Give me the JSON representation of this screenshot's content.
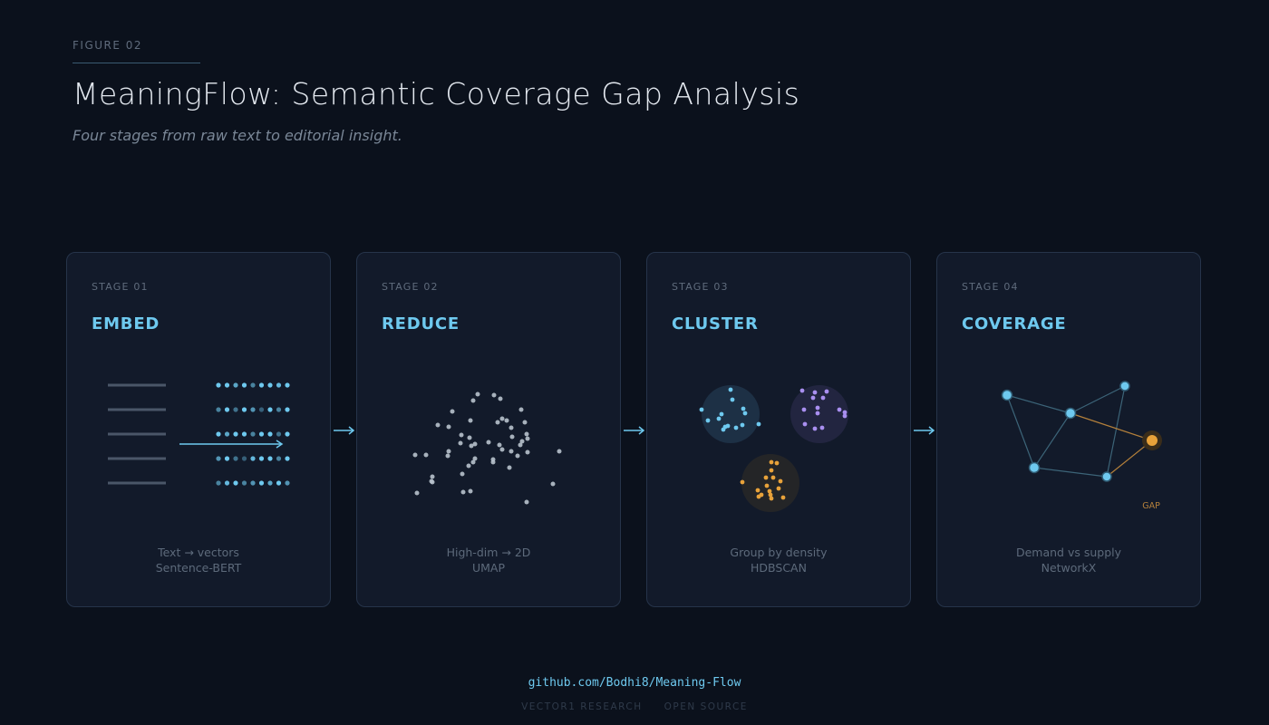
{
  "header": {
    "figure_label": "FIGURE 02",
    "title": "MeaningFlow: Semantic Coverage Gap Analysis",
    "subtitle": "Four stages from raw text to editorial insight."
  },
  "stages": [
    {
      "label": "STAGE 01",
      "name": "EMBED",
      "caption_line1": "Text → vectors",
      "caption_line2": "Sentence-BERT"
    },
    {
      "label": "STAGE 02",
      "name": "REDUCE",
      "caption_line1": "High-dim → 2D",
      "caption_line2": "UMAP"
    },
    {
      "label": "STAGE 03",
      "name": "CLUSTER",
      "caption_line1": "Group by density",
      "caption_line2": "HDBSCAN"
    },
    {
      "label": "STAGE 04",
      "name": "COVERAGE",
      "caption_line1": "Demand vs supply",
      "caption_line2": "NetworkX",
      "gap_label": "GAP"
    }
  ],
  "footer": {
    "link": "github.com/Bodhi8/Meaning-Flow",
    "tag1": "VECTOR1 RESEARCH",
    "tag2": "OPEN SOURCE"
  },
  "colors": {
    "background": "#0b111c",
    "card": "#121a2a",
    "accent_blue": "#6ec9ef",
    "cluster_purple": "#a98ff0",
    "gap_orange": "#e8a23a",
    "scatter_gray": "#b8c2cc"
  }
}
